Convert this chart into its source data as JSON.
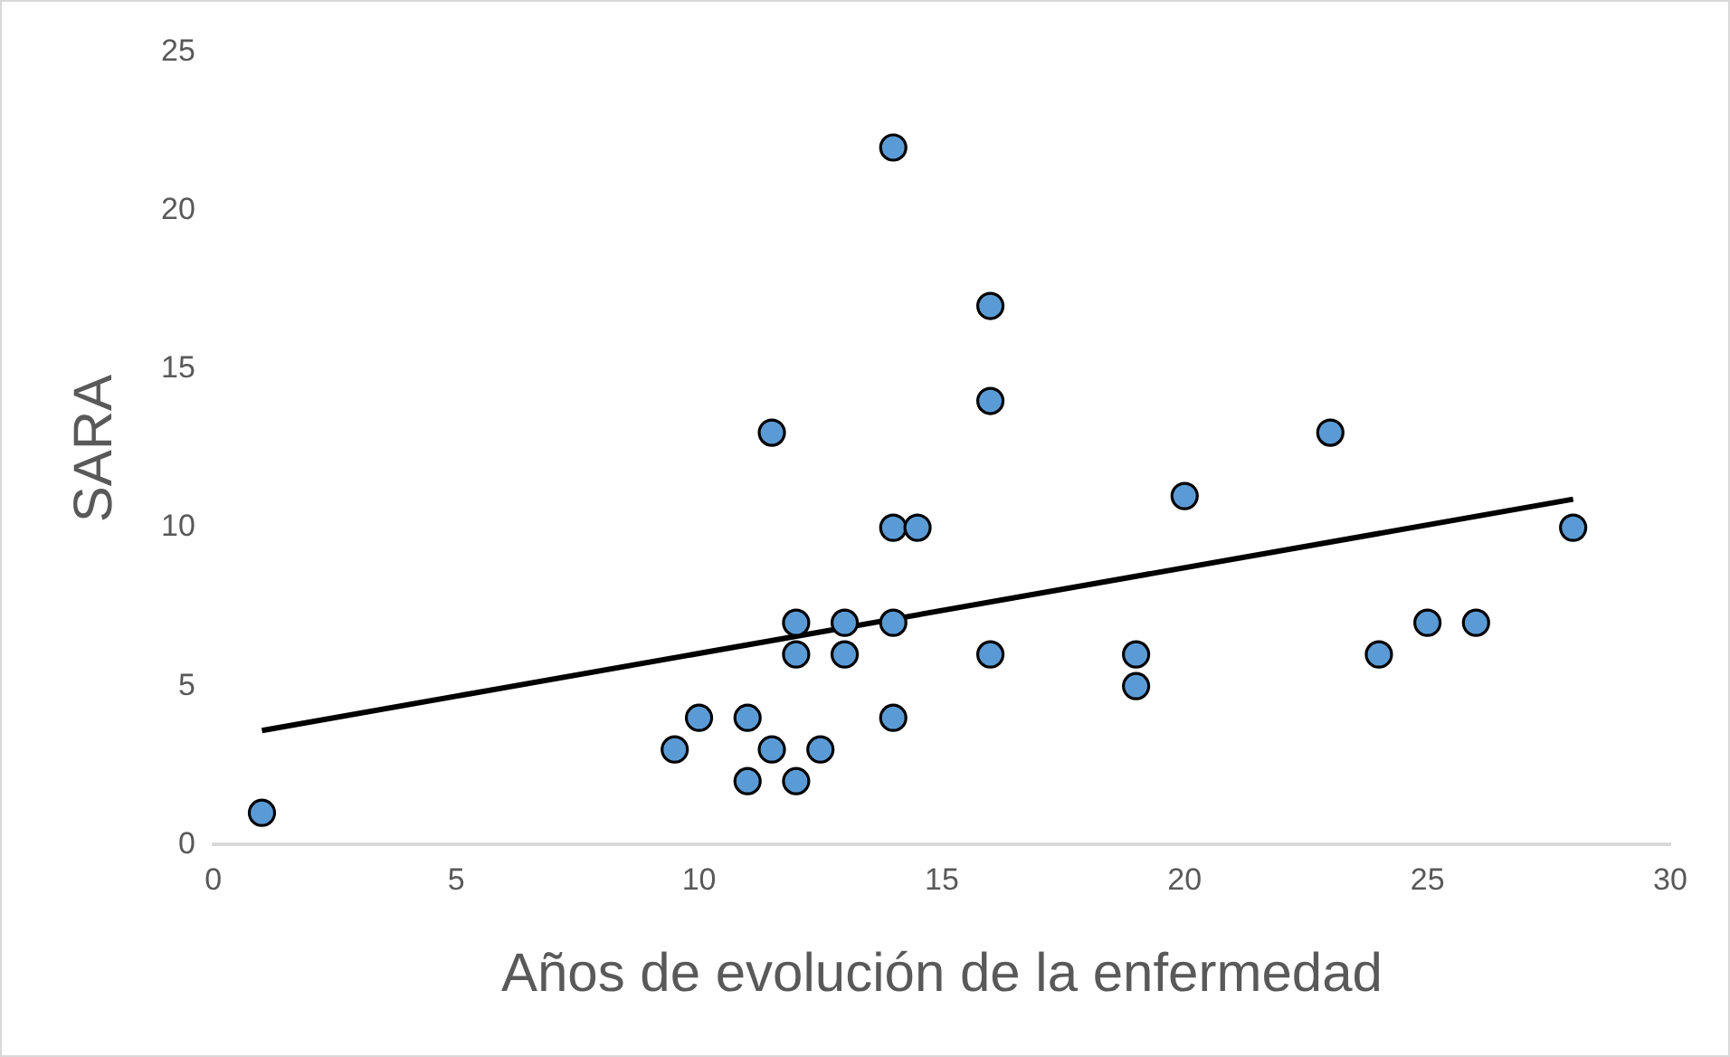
{
  "chart_data": {
    "type": "scatter",
    "xlabel": "Años de evolución de la enfermedad",
    "ylabel": "SARA",
    "xlim": [
      0,
      30
    ],
    "xticks": [
      0,
      5,
      10,
      15,
      20,
      25,
      30
    ],
    "ylim": [
      0,
      25
    ],
    "yticks": [
      0,
      5,
      10,
      15,
      20,
      25
    ],
    "grid": false,
    "legend": false,
    "marker": "circle",
    "series": [
      {
        "type": "scatter",
        "color": "#5b9bd5",
        "x": [
          1,
          9.5,
          10,
          11,
          11,
          11.5,
          11.5,
          12,
          12,
          12,
          12.5,
          13,
          13,
          14,
          14,
          14,
          14,
          14.5,
          16,
          16,
          16,
          19,
          19,
          20,
          23,
          24,
          25,
          26,
          28
        ],
        "values": [
          1,
          3,
          4,
          4,
          2,
          3,
          13,
          7,
          6,
          2,
          3,
          7,
          6,
          22,
          10,
          7,
          4,
          10,
          17,
          14,
          6,
          6,
          5,
          11,
          13,
          6,
          7,
          7,
          10
        ]
      },
      {
        "type": "line",
        "color": "#000000",
        "marker": "none",
        "line_style": "solid",
        "x": [
          1,
          28
        ],
        "values": [
          3.6,
          10.9
        ]
      }
    ]
  }
}
